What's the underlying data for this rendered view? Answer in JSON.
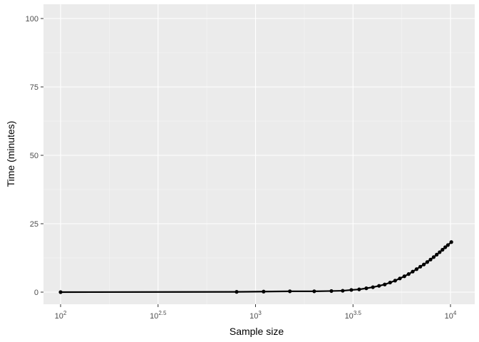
{
  "chart_data": {
    "type": "line",
    "title": "",
    "xlabel": "Sample size",
    "ylabel": "Time (minutes)",
    "x_scale": "log10",
    "xlim": [
      100,
      10000
    ],
    "ylim": [
      0,
      100
    ],
    "x_ticks": [
      {
        "value": 100,
        "base": "10",
        "exp": "2"
      },
      {
        "value": 316.23,
        "base": "10",
        "exp": "2.5"
      },
      {
        "value": 1000,
        "base": "10",
        "exp": "3"
      },
      {
        "value": 3162.28,
        "base": "10",
        "exp": "3.5"
      },
      {
        "value": 10000,
        "base": "10",
        "exp": "4"
      }
    ],
    "y_ticks": [
      {
        "value": 0,
        "label": "0"
      },
      {
        "value": 25,
        "label": "25"
      },
      {
        "value": 50,
        "label": "50"
      },
      {
        "value": 75,
        "label": "75"
      },
      {
        "value": 100,
        "label": "100"
      }
    ],
    "grid": true,
    "colors": {
      "panel_bg": "#ebebeb",
      "grid_major": "#ffffff",
      "grid_minor": "#f5f5f5",
      "line": "#000000",
      "point": "#000000"
    },
    "series": [
      {
        "x": [
          100,
          800,
          1100,
          1500,
          2000,
          2450,
          2800,
          3100,
          3400,
          3700,
          4000,
          4300,
          4600,
          4900,
          5200,
          5500,
          5800,
          6100,
          6400,
          6700,
          7000,
          7300,
          7600,
          7900,
          8200,
          8500,
          8800,
          9100,
          9400,
          9700,
          10100
        ],
        "y": [
          0,
          0.1,
          0.2,
          0.3,
          0.3,
          0.4,
          0.5,
          0.8,
          1.0,
          1.4,
          1.8,
          2.3,
          2.8,
          3.5,
          4.2,
          5.0,
          5.8,
          6.6,
          7.5,
          8.4,
          9.3,
          10.1,
          11.0,
          11.9,
          12.8,
          13.7,
          14.6,
          15.5,
          16.4,
          17.2,
          18.3
        ]
      }
    ]
  }
}
